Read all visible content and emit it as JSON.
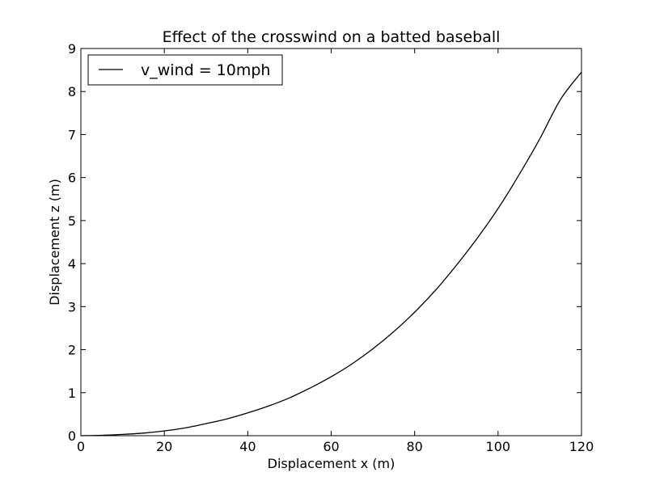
{
  "chart_data": {
    "type": "line",
    "title": "Effect of the crosswind on a batted baseball",
    "xlabel": "Displacement x (m)",
    "ylabel": "Displacement z (m)",
    "xlim": [
      0,
      120
    ],
    "ylim": [
      0,
      9
    ],
    "xticks": [
      0,
      20,
      40,
      60,
      80,
      100,
      120
    ],
    "yticks": [
      0,
      1,
      2,
      3,
      4,
      5,
      6,
      7,
      8,
      9
    ],
    "grid": false,
    "legend_position": "upper-left",
    "series": [
      {
        "name": "v_wind = 10mph",
        "color": "#000000",
        "x": [
          0,
          5,
          10,
          15,
          20,
          25,
          30,
          35,
          40,
          45,
          50,
          55,
          60,
          65,
          70,
          75,
          80,
          85,
          90,
          95,
          100,
          105,
          110,
          115,
          120
        ],
        "y": [
          0,
          0.01,
          0.03,
          0.06,
          0.11,
          0.18,
          0.28,
          0.39,
          0.53,
          0.69,
          0.88,
          1.11,
          1.37,
          1.67,
          2.02,
          2.42,
          2.87,
          3.38,
          3.96,
          4.59,
          5.28,
          6.06,
          6.9,
          7.82,
          8.45
        ]
      }
    ]
  }
}
